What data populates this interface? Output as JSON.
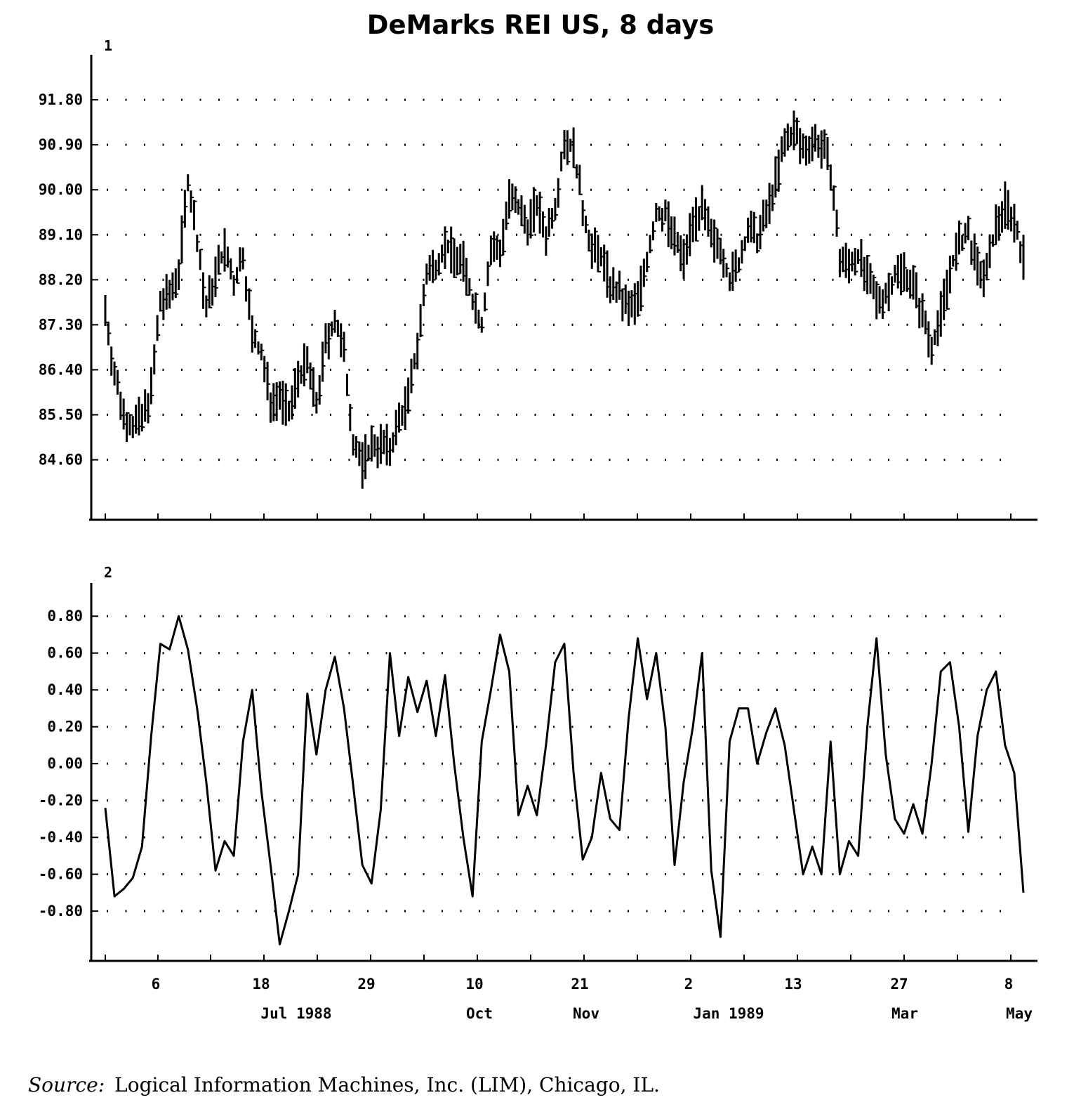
{
  "chart_data": [
    {
      "type": "line",
      "title": "DeMarks REI US, 8 days",
      "panel_label": "1",
      "ytick_labels": [
        "91.80",
        "90.90",
        "90.00",
        "89.10",
        "88.20",
        "87.30",
        "86.40",
        "85.50",
        "84.60"
      ],
      "yticks": [
        91.8,
        90.9,
        90.0,
        89.1,
        88.2,
        87.3,
        86.4,
        85.5,
        84.6
      ],
      "ylim": [
        83.4,
        92.7
      ],
      "grid": "dotted",
      "series": [
        {
          "style": "price-bars",
          "x": [
            0,
            2,
            4,
            6,
            8,
            10,
            12,
            14,
            16,
            18,
            20,
            22,
            24,
            26,
            28,
            30,
            32,
            34,
            36,
            38,
            40,
            42,
            44,
            46,
            48,
            50,
            52,
            54,
            56,
            58,
            60,
            62,
            64,
            66,
            68,
            70,
            72,
            74,
            76,
            78,
            80,
            82,
            84,
            86,
            88,
            90,
            92,
            94,
            96,
            98,
            100,
            102,
            104,
            106,
            108,
            110,
            112,
            114,
            116,
            118,
            120,
            122,
            124,
            126,
            128,
            130,
            132,
            134,
            136,
            138,
            140,
            142,
            144,
            146,
            148,
            150,
            152,
            154,
            156,
            158,
            160,
            162,
            164,
            166,
            168,
            170,
            172,
            174,
            176,
            178,
            180,
            182,
            184,
            186,
            188,
            190,
            192,
            194,
            196,
            198,
            200
          ],
          "values": [
            87.6,
            86.3,
            85.5,
            85.3,
            85.4,
            86.0,
            87.7,
            87.9,
            88.4,
            90.2,
            89.0,
            87.6,
            88.3,
            88.8,
            88.1,
            88.7,
            87.1,
            86.7,
            85.8,
            85.9,
            85.5,
            86.3,
            86.5,
            85.7,
            86.9,
            87.4,
            86.7,
            85.0,
            84.5,
            84.9,
            84.9,
            84.8,
            85.4,
            85.8,
            86.9,
            88.3,
            88.5,
            88.9,
            88.7,
            88.5,
            87.8,
            87.3,
            88.8,
            88.8,
            89.8,
            89.6,
            89.3,
            89.7,
            89.1,
            89.7,
            91.0,
            90.8,
            89.6,
            88.8,
            88.7,
            88.1,
            87.9,
            87.6,
            87.8,
            88.6,
            89.5,
            89.5,
            89.0,
            88.6,
            89.4,
            89.6,
            89.0,
            88.9,
            88.2,
            88.5,
            89.2,
            89.0,
            89.5,
            90.2,
            90.9,
            91.2,
            90.8,
            91.0,
            90.9,
            90.4,
            88.6,
            88.5,
            88.7,
            88.2,
            87.8,
            87.9,
            88.3,
            88.4,
            88.1,
            87.5,
            86.9,
            87.5,
            88.4,
            88.9,
            89.1,
            88.4,
            88.3,
            89.3,
            89.7,
            89.4,
            88.6
          ]
        }
      ]
    },
    {
      "type": "line",
      "panel_label": "2",
      "ytick_labels": [
        "0.80",
        "0.60",
        "0.40",
        "0.20",
        "0.00",
        "-0.20",
        "-0.40",
        "-0.60",
        "-0.80"
      ],
      "yticks": [
        0.8,
        0.6,
        0.4,
        0.2,
        0.0,
        -0.2,
        -0.4,
        -0.6,
        -0.8
      ],
      "ylim": [
        -1.07,
        0.98
      ],
      "grid": "dotted",
      "series": [
        {
          "style": "line",
          "x": [
            0,
            2,
            4,
            6,
            8,
            10,
            12,
            14,
            16,
            18,
            20,
            22,
            24,
            26,
            28,
            30,
            32,
            34,
            36,
            38,
            40,
            42,
            44,
            46,
            48,
            50,
            52,
            54,
            56,
            58,
            60,
            62,
            64,
            66,
            68,
            70,
            72,
            74,
            76,
            78,
            80,
            82,
            84,
            86,
            88,
            90,
            92,
            94,
            96,
            98,
            100,
            102,
            104,
            106,
            108,
            110,
            112,
            114,
            116,
            118,
            120,
            122,
            124,
            126,
            128,
            130,
            132,
            134,
            136,
            138,
            140,
            142,
            144,
            146,
            148,
            150,
            152,
            154,
            156,
            158,
            160,
            162,
            164,
            166,
            168,
            170,
            172,
            174,
            176,
            178,
            180,
            182,
            184,
            186,
            188,
            190,
            192,
            194,
            196,
            198,
            200
          ],
          "values": [
            -0.24,
            -0.72,
            -0.68,
            -0.62,
            -0.45,
            0.15,
            0.65,
            0.62,
            0.8,
            0.62,
            0.3,
            -0.1,
            -0.58,
            -0.42,
            -0.5,
            0.12,
            0.4,
            -0.15,
            -0.55,
            -0.98,
            -0.8,
            -0.6,
            0.38,
            0.05,
            0.4,
            0.58,
            0.3,
            -0.12,
            -0.55,
            -0.65,
            -0.25,
            0.6,
            0.15,
            0.47,
            0.28,
            0.45,
            0.15,
            0.48,
            0.0,
            -0.4,
            -0.72,
            0.12,
            0.4,
            0.7,
            0.5,
            -0.28,
            -0.12,
            -0.28,
            0.1,
            0.55,
            0.65,
            -0.05,
            -0.52,
            -0.4,
            -0.05,
            -0.3,
            -0.36,
            0.25,
            0.68,
            0.35,
            0.6,
            0.2,
            -0.55,
            -0.1,
            0.2,
            0.6,
            -0.58,
            -0.94,
            0.12,
            0.3,
            0.3,
            0.0,
            0.17,
            0.3,
            0.1,
            -0.25,
            -0.6,
            -0.45,
            -0.6,
            0.12,
            -0.6,
            -0.42,
            -0.5,
            0.2,
            0.68,
            0.05,
            -0.3,
            -0.38,
            -0.22,
            -0.38,
            0.0,
            0.5,
            0.55,
            0.2,
            -0.37,
            0.15,
            0.4,
            0.5,
            0.1,
            -0.05,
            -0.7
          ]
        }
      ]
    }
  ],
  "x_axis": {
    "tick_labels": [
      "6",
      "18",
      "29",
      "10",
      "21",
      "2",
      "13",
      "27",
      "8"
    ],
    "month_labels": [
      "Jul 1988",
      "Oct",
      "Nov",
      "Jan 1989",
      "Mar",
      "May"
    ]
  },
  "source": {
    "label": "Source:",
    "text": "Logical Information Machines, Inc. (LIM), Chicago, IL."
  }
}
